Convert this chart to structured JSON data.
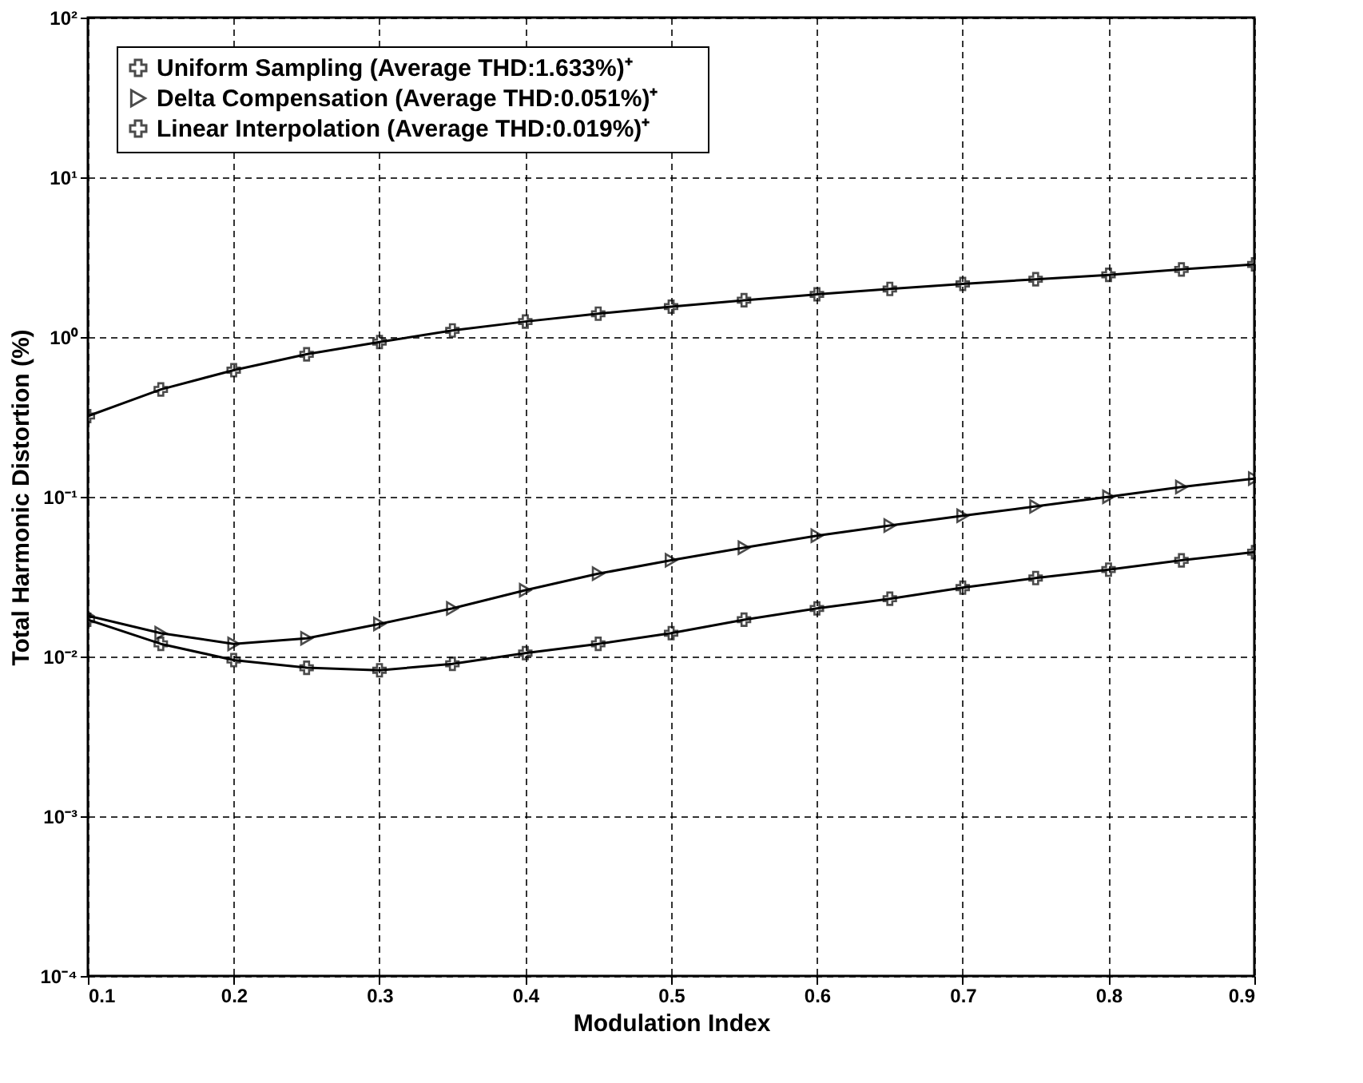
{
  "chart_data": {
    "type": "line",
    "xlabel": "Modulation Index",
    "ylabel": "Total Harmonic Distortion (%)",
    "log": true,
    "grid": true,
    "legend": "top left",
    "line_style": "solid",
    "x": [
      0.1,
      0.15,
      0.2,
      0.25,
      0.3,
      0.35,
      0.4,
      0.45,
      0.5,
      0.55,
      0.6,
      0.65,
      0.7,
      0.75,
      0.8,
      0.85,
      0.9
    ],
    "xlim": [
      0.1,
      0.9
    ],
    "xticks": [
      0.1,
      0.2,
      0.3,
      0.4,
      0.5,
      0.6,
      0.7,
      0.8,
      0.9
    ],
    "ylim": [
      0.0001,
      100
    ],
    "yticks": [
      {
        "value": 0.0001,
        "label": "10⁻⁴"
      },
      {
        "value": 0.001,
        "label": "10⁻³"
      },
      {
        "value": 0.01,
        "label": "10⁻²"
      },
      {
        "value": 0.1,
        "label": "10⁻¹"
      },
      {
        "value": 1,
        "label": "10⁰"
      },
      {
        "value": 10,
        "label": "10¹"
      },
      {
        "value": 100,
        "label": "10²"
      }
    ],
    "series": [
      {
        "name": "Uniform Sampling          (Average THD:1.633%)⁺",
        "color": "#000000",
        "marker": "cross",
        "values": [
          0.32,
          0.47,
          0.62,
          0.78,
          0.93,
          1.1,
          1.25,
          1.4,
          1.55,
          1.7,
          1.85,
          2.0,
          2.15,
          2.3,
          2.45,
          2.65,
          2.85
        ]
      },
      {
        "name": "Delta Compensation       (Average THD:0.051%)⁺",
        "color": "#000000",
        "marker": "triangle",
        "values": [
          0.018,
          0.014,
          0.012,
          0.013,
          0.016,
          0.02,
          0.026,
          0.033,
          0.04,
          0.048,
          0.057,
          0.066,
          0.076,
          0.087,
          0.1,
          0.115,
          0.13
        ]
      },
      {
        "name": "Linear Interpolation       (Average THD:0.019%)⁺",
        "color": "#000000",
        "marker": "cross",
        "values": [
          0.017,
          0.012,
          0.0095,
          0.0085,
          0.0082,
          0.009,
          0.0105,
          0.012,
          0.014,
          0.017,
          0.02,
          0.023,
          0.027,
          0.031,
          0.035,
          0.04,
          0.045
        ]
      }
    ]
  }
}
